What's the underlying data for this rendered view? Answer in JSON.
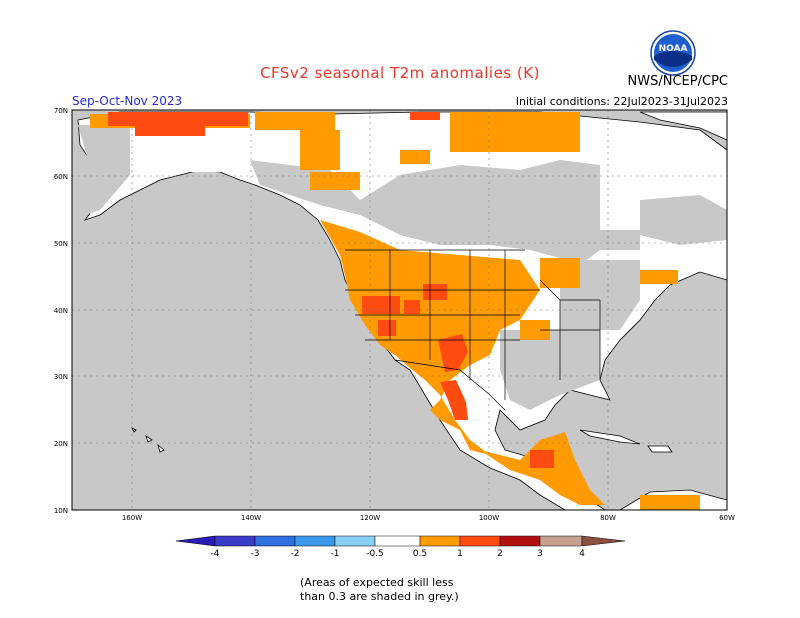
{
  "header": {
    "title": "CFSv2 seasonal T2m anomalies (K)",
    "agency": "NWS/NCEP/CPC",
    "season": "Sep-Oct-Nov 2023",
    "initial_conditions": "Initial conditions: 22Jul2023-31Jul2023",
    "logo_text": "NOAA"
  },
  "map": {
    "lat_labels": [
      "70N",
      "60N",
      "50N",
      "40N",
      "30N",
      "20N",
      "10N"
    ],
    "lon_labels": [
      "160W",
      "140W",
      "120W",
      "100W",
      "80W",
      "60W"
    ],
    "ocean_color": "#c8c8c8",
    "land_color": "#ffffff"
  },
  "legend": {
    "labels": [
      "-4",
      "-3",
      "-2",
      "-1",
      "-0.5",
      "0.5",
      "1",
      "2",
      "3",
      "4"
    ],
    "colors": [
      "#2a1bb5",
      "#3a4fd8",
      "#2f7fe0",
      "#3aa0ec",
      "#8fd0f8",
      "#ffffff",
      "#ff9a00",
      "#ff4a10",
      "#b01010",
      "#c8a090",
      "#8a5040"
    ]
  },
  "footnote": {
    "line1": "(Areas of expected skill less",
    "line2": "than 0.3 are shaded in grey.)"
  }
}
